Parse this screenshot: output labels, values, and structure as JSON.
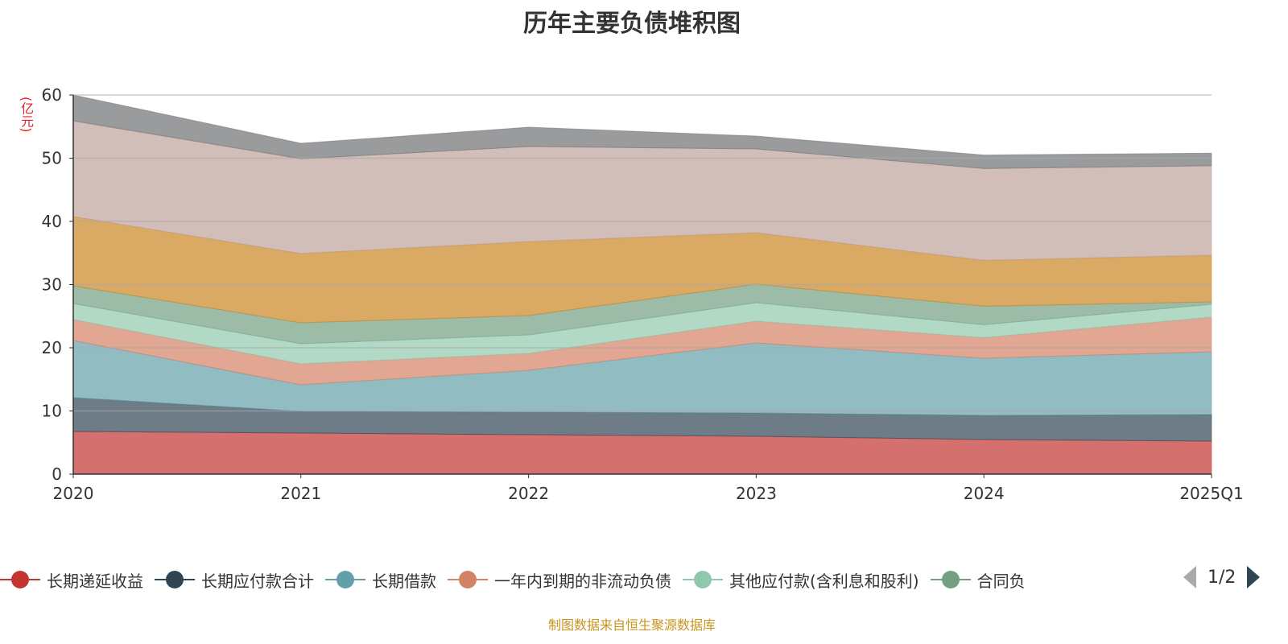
{
  "chart_data": {
    "type": "area",
    "stacked": true,
    "title": "历年主要负债堆积图",
    "ylabel": "(亿元)",
    "xlabel": "",
    "ylim": [
      0,
      60
    ],
    "yticks": [
      "0",
      "10",
      "20",
      "30",
      "40",
      "50",
      "60"
    ],
    "categories": [
      "2020",
      "2021",
      "2022",
      "2023",
      "2024",
      "2025Q1"
    ],
    "grid": true,
    "legend_position": "bottom",
    "series": [
      {
        "name": "长期递延收益",
        "color": "#c23531",
        "values": [
          6.75,
          6.5,
          6.24,
          5.99,
          5.48,
          5.22
        ]
      },
      {
        "name": "长期应付款合计",
        "color": "#2f4554",
        "values": [
          5.35,
          3.44,
          3.57,
          3.69,
          3.82,
          4.21
        ]
      },
      {
        "name": "长期借款",
        "color": "#61a0a8",
        "values": [
          9.05,
          4.2,
          6.62,
          11.08,
          9.04,
          9.93
        ]
      },
      {
        "name": "一年内到期的非流动负债",
        "color": "#d48265",
        "values": [
          3.31,
          3.31,
          2.67,
          3.44,
          3.26,
          5.48
        ]
      },
      {
        "name": "其他应付款(含利息和股利)",
        "color": "#91c7ae",
        "values": [
          2.54,
          3.19,
          2.94,
          2.93,
          2.04,
          2.04
        ]
      },
      {
        "name": "合同负",
        "color": "#749f83",
        "values": [
          2.8,
          3.31,
          3.06,
          2.93,
          2.93,
          0.38
        ]
      },
      {
        "name": "",
        "color": "#ca8622",
        "values": [
          10.96,
          10.95,
          11.7,
          8.14,
          7.26,
          7.39
        ]
      },
      {
        "name": "",
        "color": "#bda29a",
        "values": [
          15.14,
          15.0,
          15.05,
          13.26,
          14.53,
          14.15
        ]
      },
      {
        "name": "",
        "color": "#6e7074",
        "values": [
          4.1,
          2.46,
          3.05,
          2.04,
          2.14,
          2.0
        ]
      }
    ]
  },
  "legend": {
    "page": "1/2"
  },
  "source": "制图数据来自恒生聚源数据库"
}
